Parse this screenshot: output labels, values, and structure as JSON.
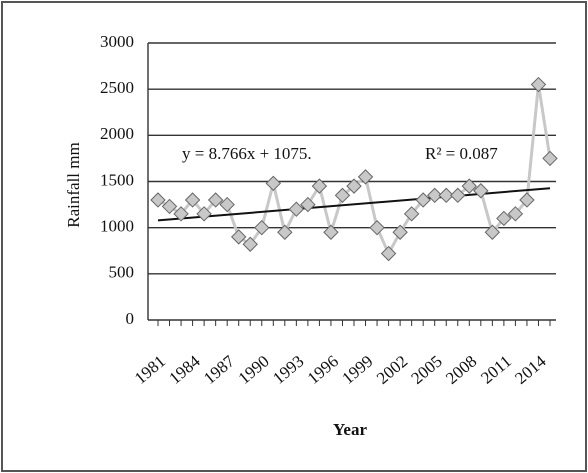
{
  "chart_data": {
    "type": "line",
    "x_label": "Year",
    "y_label": "Rainfall mm",
    "equation": "y = 8.766x + 1075.",
    "r_squared": "R² = 0.087",
    "x": [
      1981,
      1982,
      1983,
      1984,
      1985,
      1986,
      1987,
      1988,
      1989,
      1990,
      1991,
      1992,
      1993,
      1994,
      1995,
      1996,
      1997,
      1998,
      1999,
      2000,
      2001,
      2002,
      2003,
      2004,
      2005,
      2006,
      2007,
      2008,
      2009,
      2010,
      2011,
      2012,
      2013,
      2014,
      2015
    ],
    "series": [
      {
        "color": "#c8c8c8",
        "values": [
          1300,
          1230,
          1150,
          1300,
          1150,
          1300,
          1250,
          900,
          820,
          1000,
          1480,
          950,
          1200,
          1250,
          1450,
          950,
          1350,
          1450,
          1550,
          1000,
          720,
          950,
          1150,
          1300,
          1350,
          1350,
          1350,
          1450,
          1400,
          950,
          1100,
          1150,
          1300,
          2550,
          1750
        ]
      }
    ],
    "trend_color": "#111111",
    "xlim": [
      1981,
      2015
    ],
    "xticks": [
      1981,
      1984,
      1987,
      1990,
      1993,
      1996,
      1999,
      2002,
      2005,
      2008,
      2011,
      2014
    ],
    "ylim": [
      0,
      3000
    ],
    "yticks": [
      0,
      500,
      1000,
      1500,
      2000,
      2500,
      3000
    ],
    "grid": true
  }
}
